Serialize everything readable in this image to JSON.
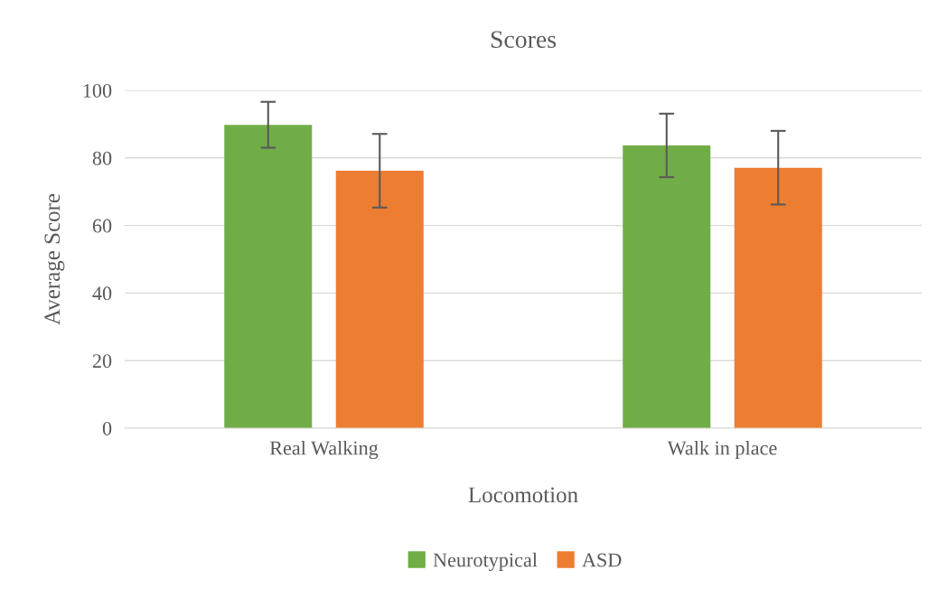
{
  "chart_data": {
    "type": "bar",
    "title": "Scores",
    "xlabel": "Locomotion",
    "ylabel": "Average Score",
    "categories": [
      "Real Walking",
      "Walk in place"
    ],
    "series": [
      {
        "name": "Neurotypical",
        "color": "#70ad47",
        "values": [
          89.8,
          83.7
        ],
        "errors": [
          6.8,
          9.4
        ]
      },
      {
        "name": "ASD",
        "color": "#ed7d31",
        "values": [
          76.2,
          77.1
        ],
        "errors": [
          10.9,
          10.9
        ]
      }
    ],
    "ylim": [
      0,
      100
    ],
    "yticks": [
      0,
      20,
      40,
      60,
      80,
      100
    ],
    "grid": "y",
    "legend": "bottom"
  }
}
